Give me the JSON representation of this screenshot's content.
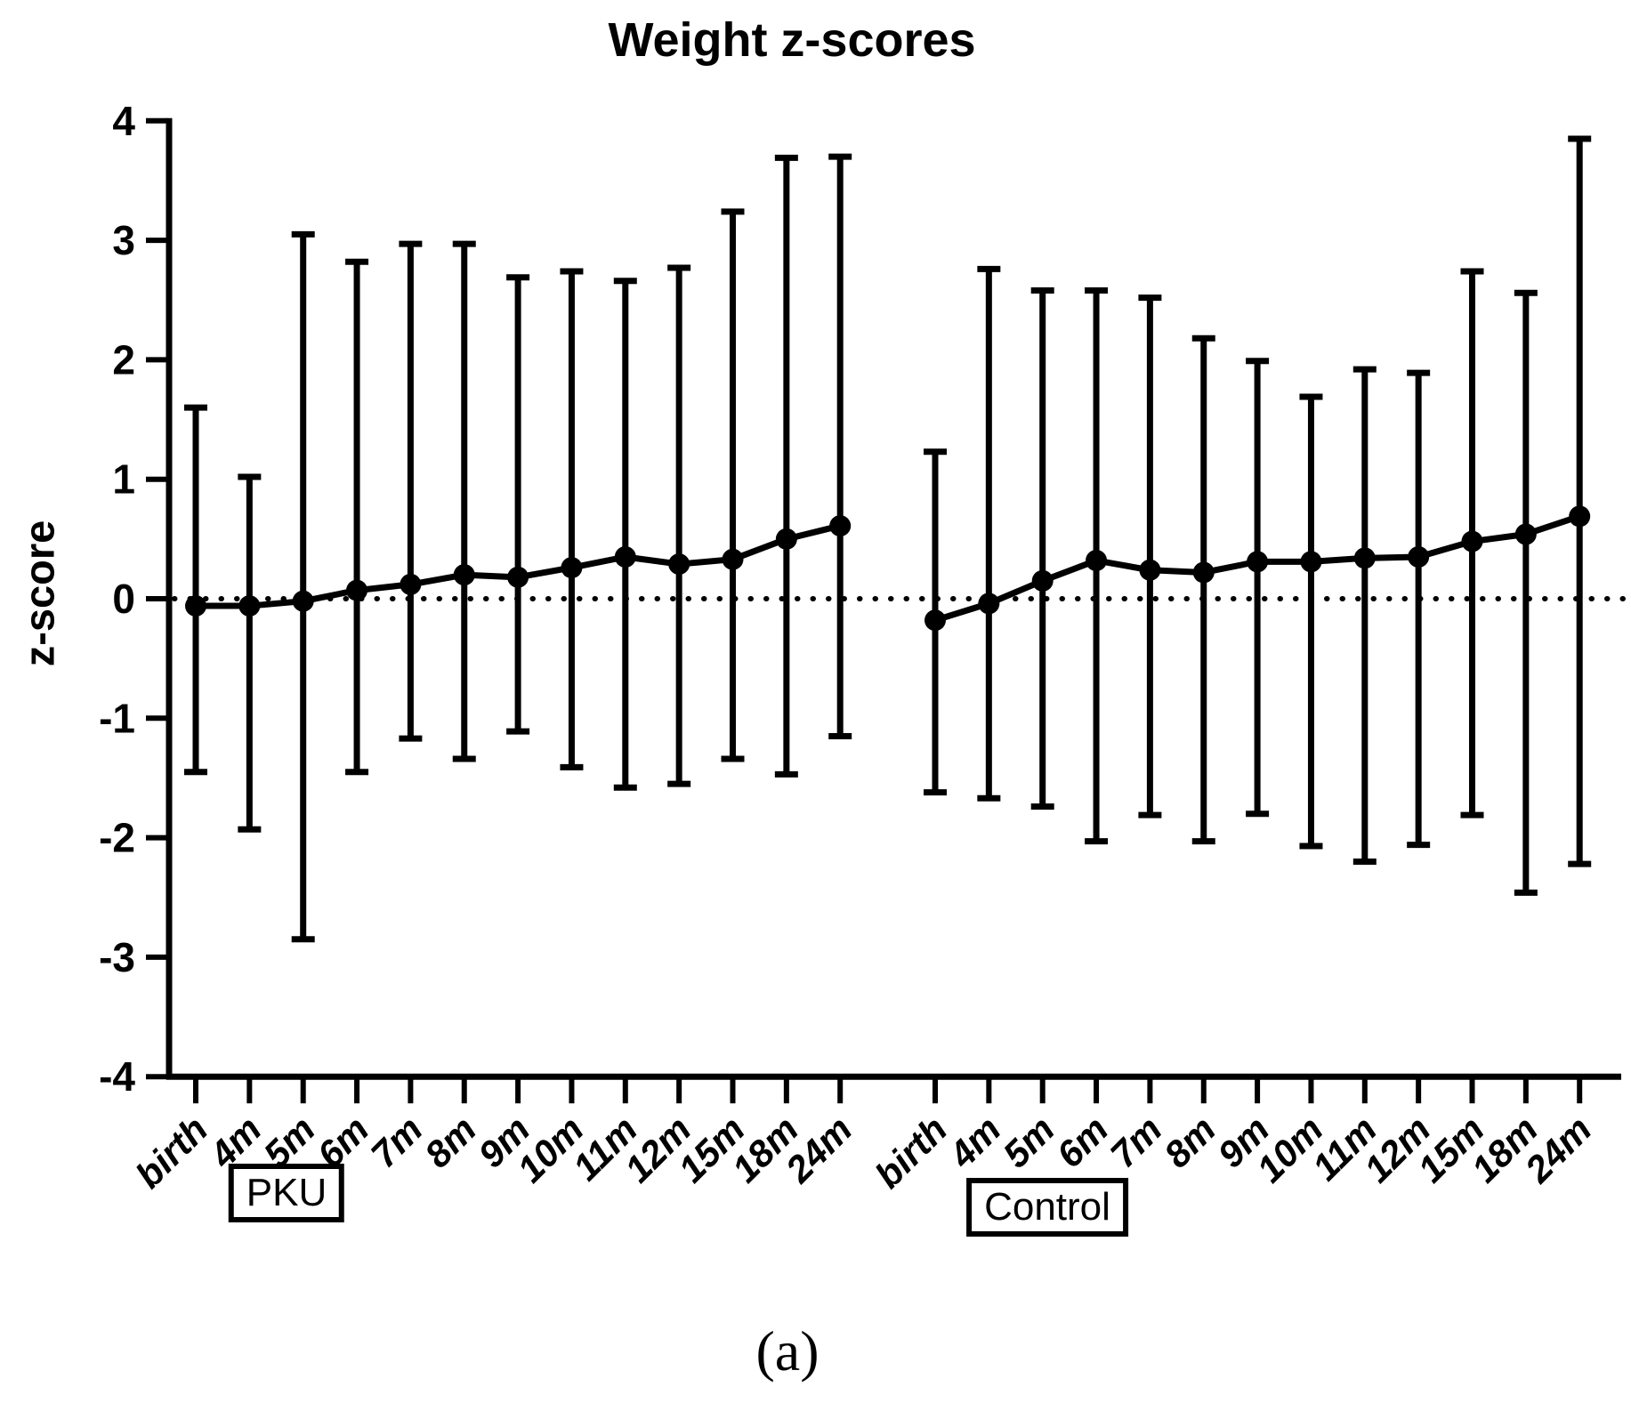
{
  "figure": {
    "title": "Weight z-scores",
    "y_axis_label": "z-score",
    "caption": "(a)"
  },
  "colors": {
    "ink": "#000000",
    "background": "#ffffff"
  },
  "chart_data": {
    "type": "line",
    "subtype": "mean-with-error-bars",
    "title": "Weight z-scores",
    "xlabel": "",
    "ylabel": "z-score",
    "ylim": [
      -4,
      4
    ],
    "y_ticks": [
      4,
      3,
      2,
      1,
      0,
      -1,
      -2,
      -3,
      -4
    ],
    "grid": false,
    "legend_position": "none",
    "zero_line_dotted": true,
    "categories": [
      "birth",
      "4m",
      "5m",
      "6m",
      "7m",
      "8m",
      "9m",
      "10m",
      "11m",
      "12m",
      "15m",
      "18m",
      "24m"
    ],
    "groups": [
      {
        "label": "PKU",
        "mean": [
          -0.06,
          -0.06,
          -0.02,
          0.07,
          0.12,
          0.2,
          0.18,
          0.26,
          0.35,
          0.29,
          0.33,
          0.5,
          0.61
        ],
        "upper": [
          1.6,
          1.02,
          3.05,
          2.82,
          2.97,
          2.97,
          2.69,
          2.74,
          2.66,
          2.77,
          3.24,
          3.69,
          3.7
        ],
        "lower": [
          -1.45,
          -1.93,
          -2.85,
          -1.45,
          -1.17,
          -1.34,
          -1.11,
          -1.41,
          -1.58,
          -1.55,
          -1.34,
          -1.47,
          -1.15
        ]
      },
      {
        "label": "Control",
        "mean": [
          -0.18,
          -0.04,
          0.15,
          0.32,
          0.24,
          0.22,
          0.31,
          0.31,
          0.34,
          0.35,
          0.48,
          0.54,
          0.69
        ],
        "upper": [
          1.23,
          2.76,
          2.58,
          2.58,
          2.52,
          2.18,
          1.99,
          1.69,
          1.92,
          1.89,
          2.74,
          2.56,
          3.85
        ],
        "lower": [
          -1.62,
          -1.67,
          -1.74,
          -2.03,
          -1.81,
          -2.03,
          -1.8,
          -2.07,
          -2.2,
          -2.06,
          -1.81,
          -2.46,
          -2.22
        ]
      }
    ]
  }
}
